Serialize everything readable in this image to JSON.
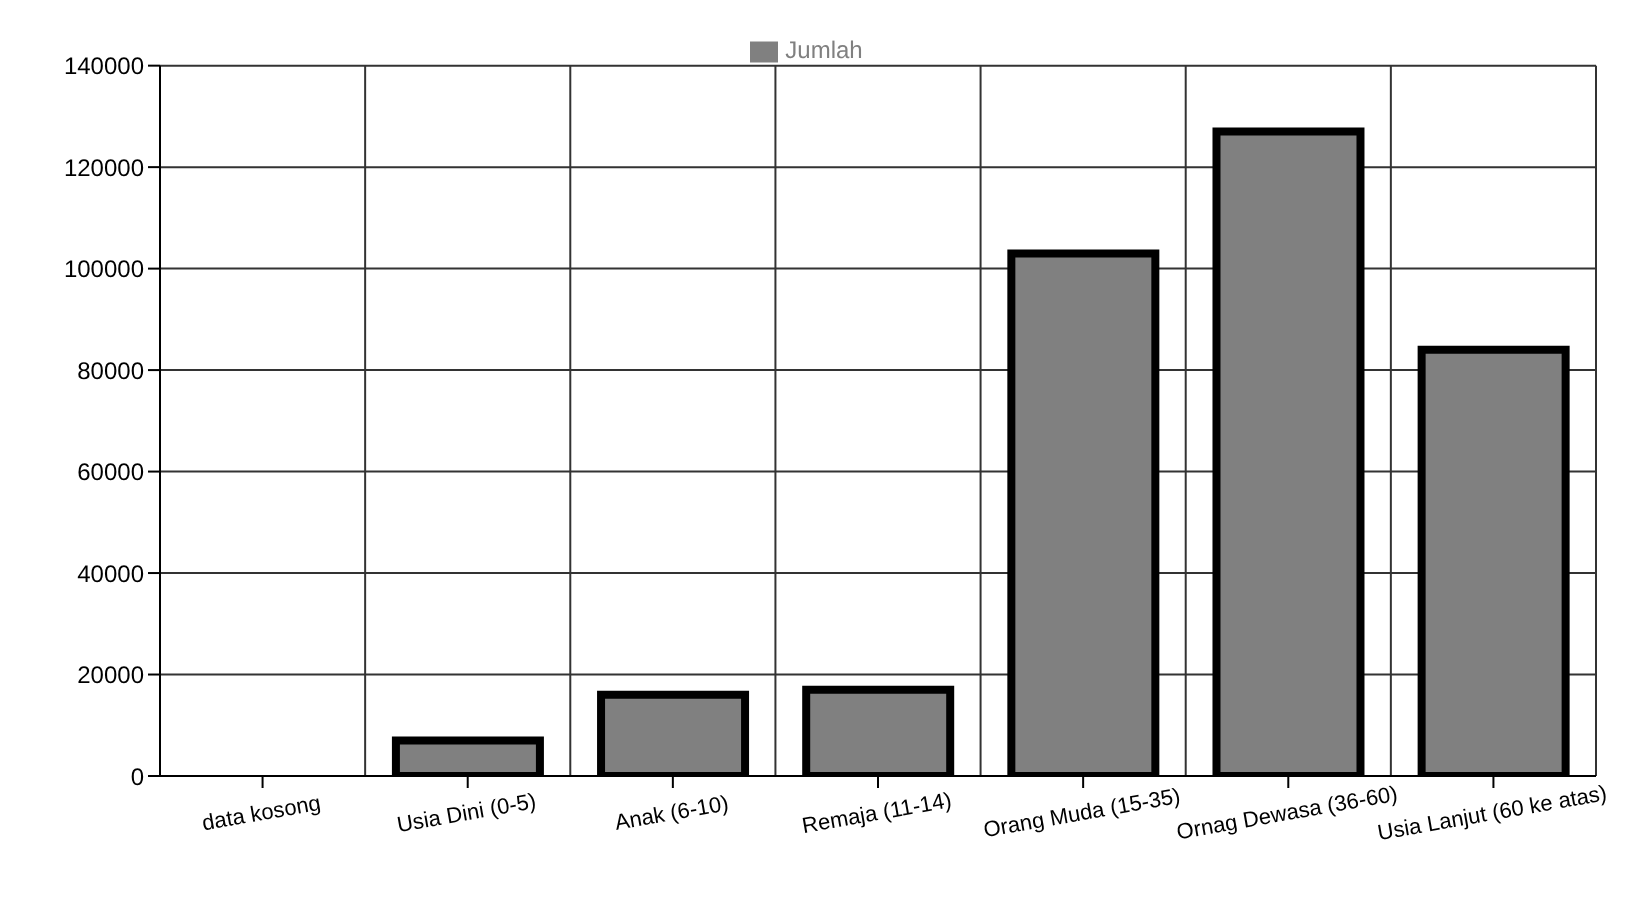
{
  "chart_data": {
    "type": "bar",
    "categories": [
      "data kosong",
      "Usia Dini (0-5)",
      "Anak (6-10)",
      "Remaja (11-14)",
      "Orang Muda (15-35)",
      "Ornag Dewasa (36-60)",
      "Usia Lanjut (60 ke atas)"
    ],
    "series": [
      {
        "name": "Jumlah",
        "color": "#808080",
        "values": [
          0,
          7000,
          16000,
          17000,
          103000,
          127000,
          84000
        ]
      }
    ],
    "ylim": [
      0,
      140000
    ],
    "yticks": [
      0,
      20000,
      40000,
      60000,
      80000,
      100000,
      120000,
      140000
    ],
    "grid": true,
    "legend": "top"
  }
}
